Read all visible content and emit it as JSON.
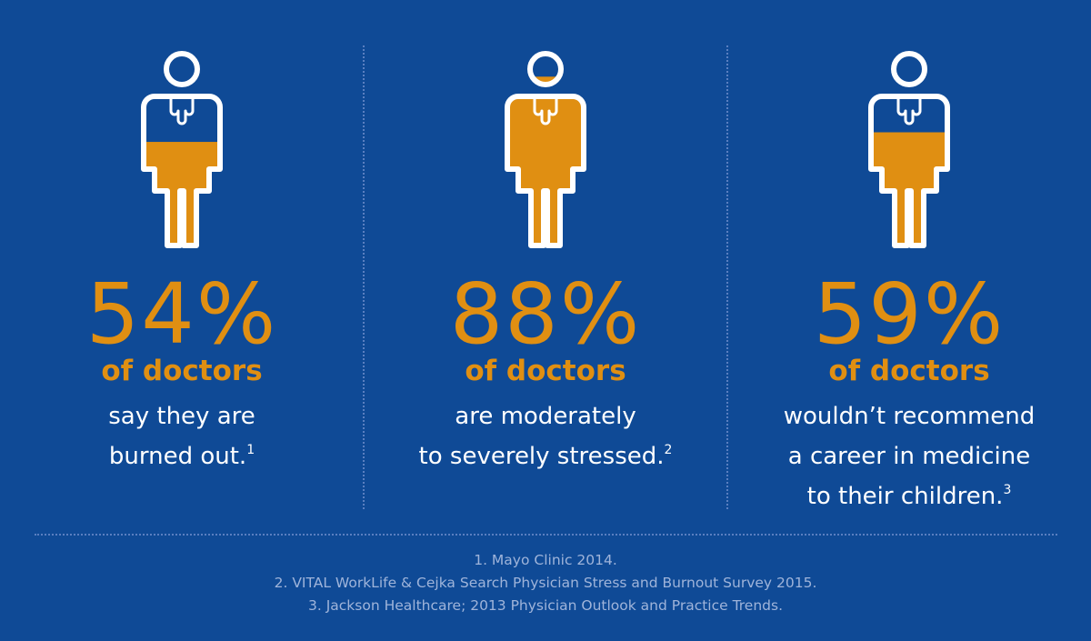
{
  "colors": {
    "background": "#0f4a96",
    "accent": "#e08f12",
    "outline": "#ffffff",
    "divider": "#5a7fc0",
    "footnote": "#9fb4da"
  },
  "stats": [
    {
      "percent": "54%",
      "fill_fraction": 0.54,
      "label": "of doctors",
      "lines": [
        "say they are",
        "burned out."
      ],
      "footnote_mark": "1"
    },
    {
      "percent": "88%",
      "fill_fraction": 0.88,
      "label": "of doctors",
      "lines": [
        "are moderately",
        "to severely stressed."
      ],
      "footnote_mark": "2"
    },
    {
      "percent": "59%",
      "fill_fraction": 0.59,
      "label": "of doctors",
      "lines": [
        "wouldn’t recommend",
        "a career in medicine",
        "to their children."
      ],
      "footnote_mark": "3"
    }
  ],
  "footnotes": [
    "1. Mayo Clinic 2014.",
    "2. VITAL WorkLife & Cejka Search Physician Stress and Burnout Survey 2015.",
    "3. Jackson Healthcare; 2013 Physician Outlook and Practice Trends."
  ]
}
